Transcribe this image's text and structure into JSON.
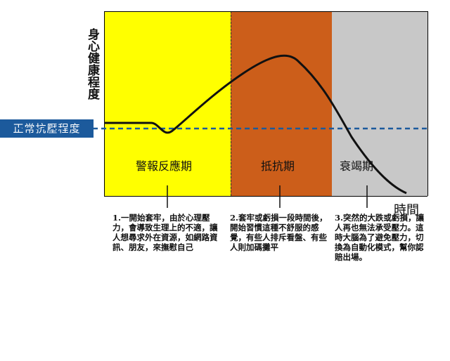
{
  "axes": {
    "y_label": "身心健康程度",
    "x_label": "時間"
  },
  "baseline": {
    "label": "正常抗壓程度",
    "color": "#1c5a9c"
  },
  "phases": [
    {
      "label": "警報反應期",
      "color": "#ffff00"
    },
    {
      "label": "抵抗期",
      "color": "#cc5e1a"
    },
    {
      "label": "衰竭期",
      "color": "#c8c8c8"
    }
  ],
  "notes": [
    "1.一開始套牢，由於心理壓力，會導致生理上的不適，讓人想尋求外在資源，如網路資訊、朋友，來撫慰自己",
    "2.套牢或虧損一段時間後，開始習慣這種不舒服的感覺，有些人排斥看盤、有些人則加碼攤平",
    "3.突然的大跌或虧損，讓人再也無法承受壓力。這時大腦為了避免壓力，切換為自動化模式，幫你認賠出場。"
  ]
}
